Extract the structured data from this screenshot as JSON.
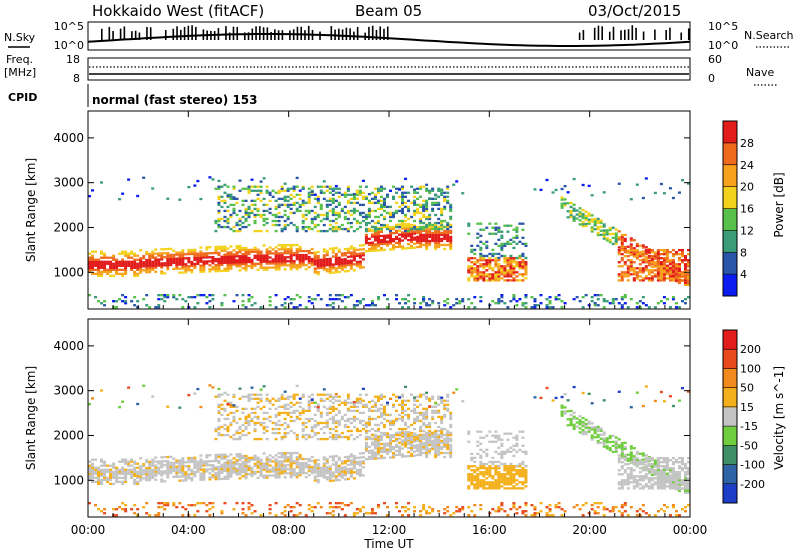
{
  "header": {
    "radar": "Hokkaido West (fitACF)",
    "beam": "Beam 05",
    "date": "03/Oct/2015"
  },
  "status_panel": {
    "nsky_label": "N.Sky",
    "nsky_ticks": [
      "10^5",
      "10^0"
    ],
    "nsearch_label": "N.Search",
    "freq_label": "Freq.",
    "freq_unit": "[MHz]",
    "freq_ticks": [
      "18",
      "8"
    ],
    "nave_label": "Nave",
    "nave_ticks": [
      "60",
      "0"
    ],
    "cpid_label": "CPID",
    "cpid_value": "normal (fast stereo) 153"
  },
  "chart_data": [
    {
      "type": "heatmap",
      "panel": "power",
      "ylabel": "Slant Range [km]",
      "ylim": [
        180,
        4600
      ],
      "yticks": [
        1000,
        2000,
        3000,
        4000
      ],
      "xlim_hours": [
        0,
        24
      ],
      "colorbar_label": "Power [dB]",
      "colorbar_range": [
        0,
        32
      ],
      "colorbar_ticks": [
        4,
        8,
        12,
        16,
        20,
        24,
        28
      ],
      "colorbar_colors": [
        "#0b1cf0",
        "#2a56a8",
        "#3a9c79",
        "#57c04a",
        "#f2d21b",
        "#f7a21b",
        "#ef6a1d",
        "#e21b1b"
      ]
    },
    {
      "type": "heatmap",
      "panel": "velocity",
      "ylabel": "Slant Range [km]",
      "ylim": [
        180,
        4600
      ],
      "yticks": [
        1000,
        2000,
        3000,
        4000
      ],
      "xlim_hours": [
        0,
        24
      ],
      "colorbar_label": "Velocity [m s^-1]",
      "colorbar_ticks": [
        "200",
        "100",
        "50",
        "15",
        "-15",
        "-50",
        "-100",
        "-200"
      ],
      "colorbar_colors": [
        "#1d3fc7",
        "#2e63a5",
        "#3e8e66",
        "#6fcd3e",
        "#c4c4c4",
        "#f4b01a",
        "#f08a1d",
        "#e84a1d",
        "#e21b1b"
      ]
    }
  ],
  "xaxis": {
    "label": "Time UT",
    "ticks": [
      "00:00",
      "04:00",
      "08:00",
      "12:00",
      "16:00",
      "20:00",
      "00:00"
    ]
  }
}
